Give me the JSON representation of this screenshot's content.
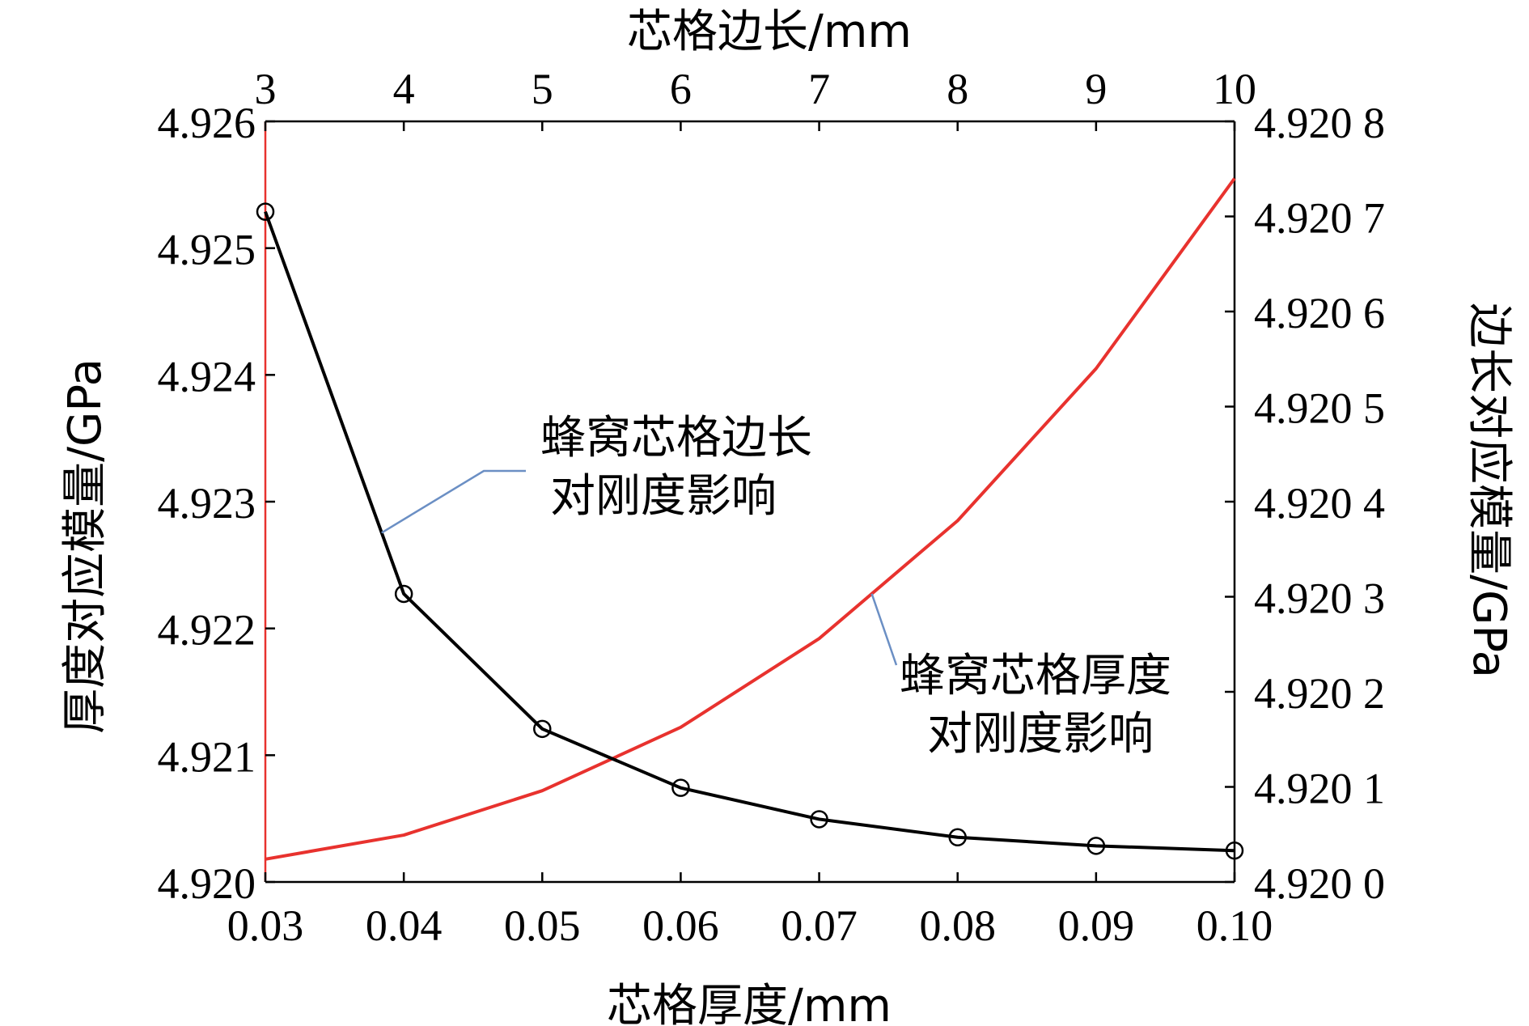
{
  "chart_data": {
    "type": "line",
    "bottom_axis": {
      "label": "芯格厚度/mm",
      "range": [
        0.03,
        0.1
      ],
      "ticks": [
        0.03,
        0.04,
        0.05,
        0.06,
        0.07,
        0.08,
        0.09,
        0.1
      ],
      "tick_labels": [
        "0.03",
        "0.04",
        "0.05",
        "0.06",
        "0.07",
        "0.08",
        "0.09",
        "0.10"
      ]
    },
    "top_axis": {
      "label": "芯格边长/mm",
      "range": [
        3,
        10
      ],
      "ticks": [
        3,
        4,
        5,
        6,
        7,
        8,
        9,
        10
      ],
      "tick_labels": [
        "3",
        "4",
        "5",
        "6",
        "7",
        "8",
        "9",
        "10"
      ]
    },
    "left_axis": {
      "label": "厚度对应模量/GPa",
      "range": [
        4.92,
        4.926
      ],
      "ticks": [
        4.92,
        4.921,
        4.922,
        4.923,
        4.924,
        4.925,
        4.926
      ],
      "tick_labels": [
        "4.920",
        "4.921",
        "4.922",
        "4.923",
        "4.924",
        "4.925",
        "4.926"
      ],
      "color": "#e8322e"
    },
    "right_axis": {
      "label": "边长对应模量/GPa",
      "range": [
        0,
        8
      ],
      "ticks": [
        0,
        1,
        2,
        3,
        4,
        5,
        6,
        7,
        8
      ],
      "tick_labels": [
        "4.920 0",
        "4.920 1",
        "4.920 2",
        "4.920 3",
        "4.920 4",
        "4.920 5",
        "4.920 6",
        "4.920 7",
        "4.920 8"
      ]
    },
    "series": [
      {
        "name": "蜂窝芯格厚度对刚度影响",
        "axes": "bottom-left",
        "color": "#e8322e",
        "marker": "none",
        "x": [
          0.03,
          0.04,
          0.05,
          0.06,
          0.07,
          0.08,
          0.09,
          0.1
        ],
        "y": [
          4.92018,
          4.92037,
          4.92072,
          4.92122,
          4.92192,
          4.92285,
          4.92405,
          4.92555
        ]
      },
      {
        "name": "蜂窝芯格边长对刚度影响",
        "axes": "top-right",
        "color": "#000000",
        "marker": "circle",
        "x": [
          3,
          4,
          5,
          6,
          7,
          8,
          9,
          10
        ],
        "y": [
          7.05,
          3.03,
          1.61,
          0.99,
          0.66,
          0.47,
          0.38,
          0.33
        ]
      }
    ],
    "annotations": [
      {
        "target": "蜂窝芯格边长对刚度影响",
        "lines": [
          "蜂窝芯格边长",
          "对刚度影响"
        ],
        "leader_color": "#6b8fc4"
      },
      {
        "target": "蜂窝芯格厚度对刚度影响",
        "lines": [
          "蜂窝芯格厚度",
          "对刚度影响"
        ],
        "leader_color": "#6b8fc4"
      }
    ],
    "grid": false
  }
}
